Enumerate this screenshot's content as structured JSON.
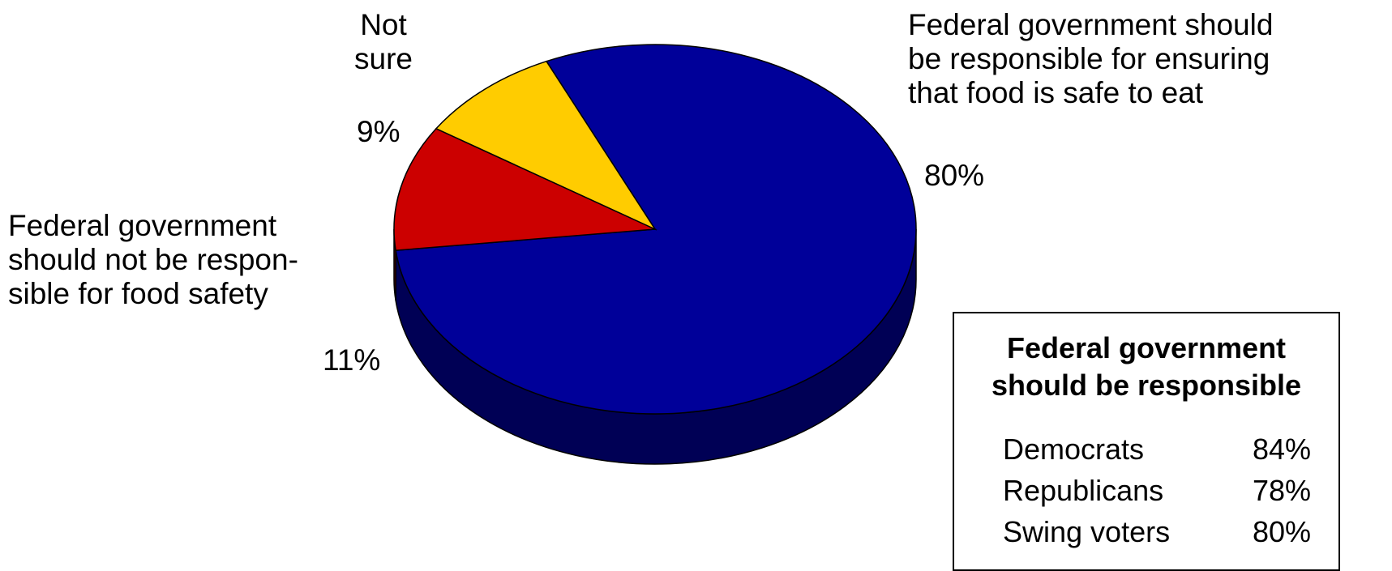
{
  "chart_data": {
    "type": "pie",
    "title": "",
    "slices": [
      {
        "label": "Federal government should\nbe responsible for ensuring\nthat food is safe to eat",
        "percent_label": "80%",
        "value": 80,
        "color": "#000099",
        "side_color": "#000055"
      },
      {
        "label": "Federal government\nshould not be respon-\nsible for food safety",
        "percent_label": "11%",
        "value": 11,
        "color": "#CC0000",
        "side_color": "#660000"
      },
      {
        "label": "Not\nsure",
        "percent_label": "9%",
        "value": 9,
        "color": "#FFCC00",
        "side_color": "#806600"
      }
    ],
    "inset": {
      "title": "Federal government\nshould be responsible",
      "rows": [
        {
          "name": "Democrats",
          "value": "84%"
        },
        {
          "name": "Republicans",
          "value": "78%"
        },
        {
          "name": "Swing voters",
          "value": "80%"
        }
      ]
    }
  }
}
